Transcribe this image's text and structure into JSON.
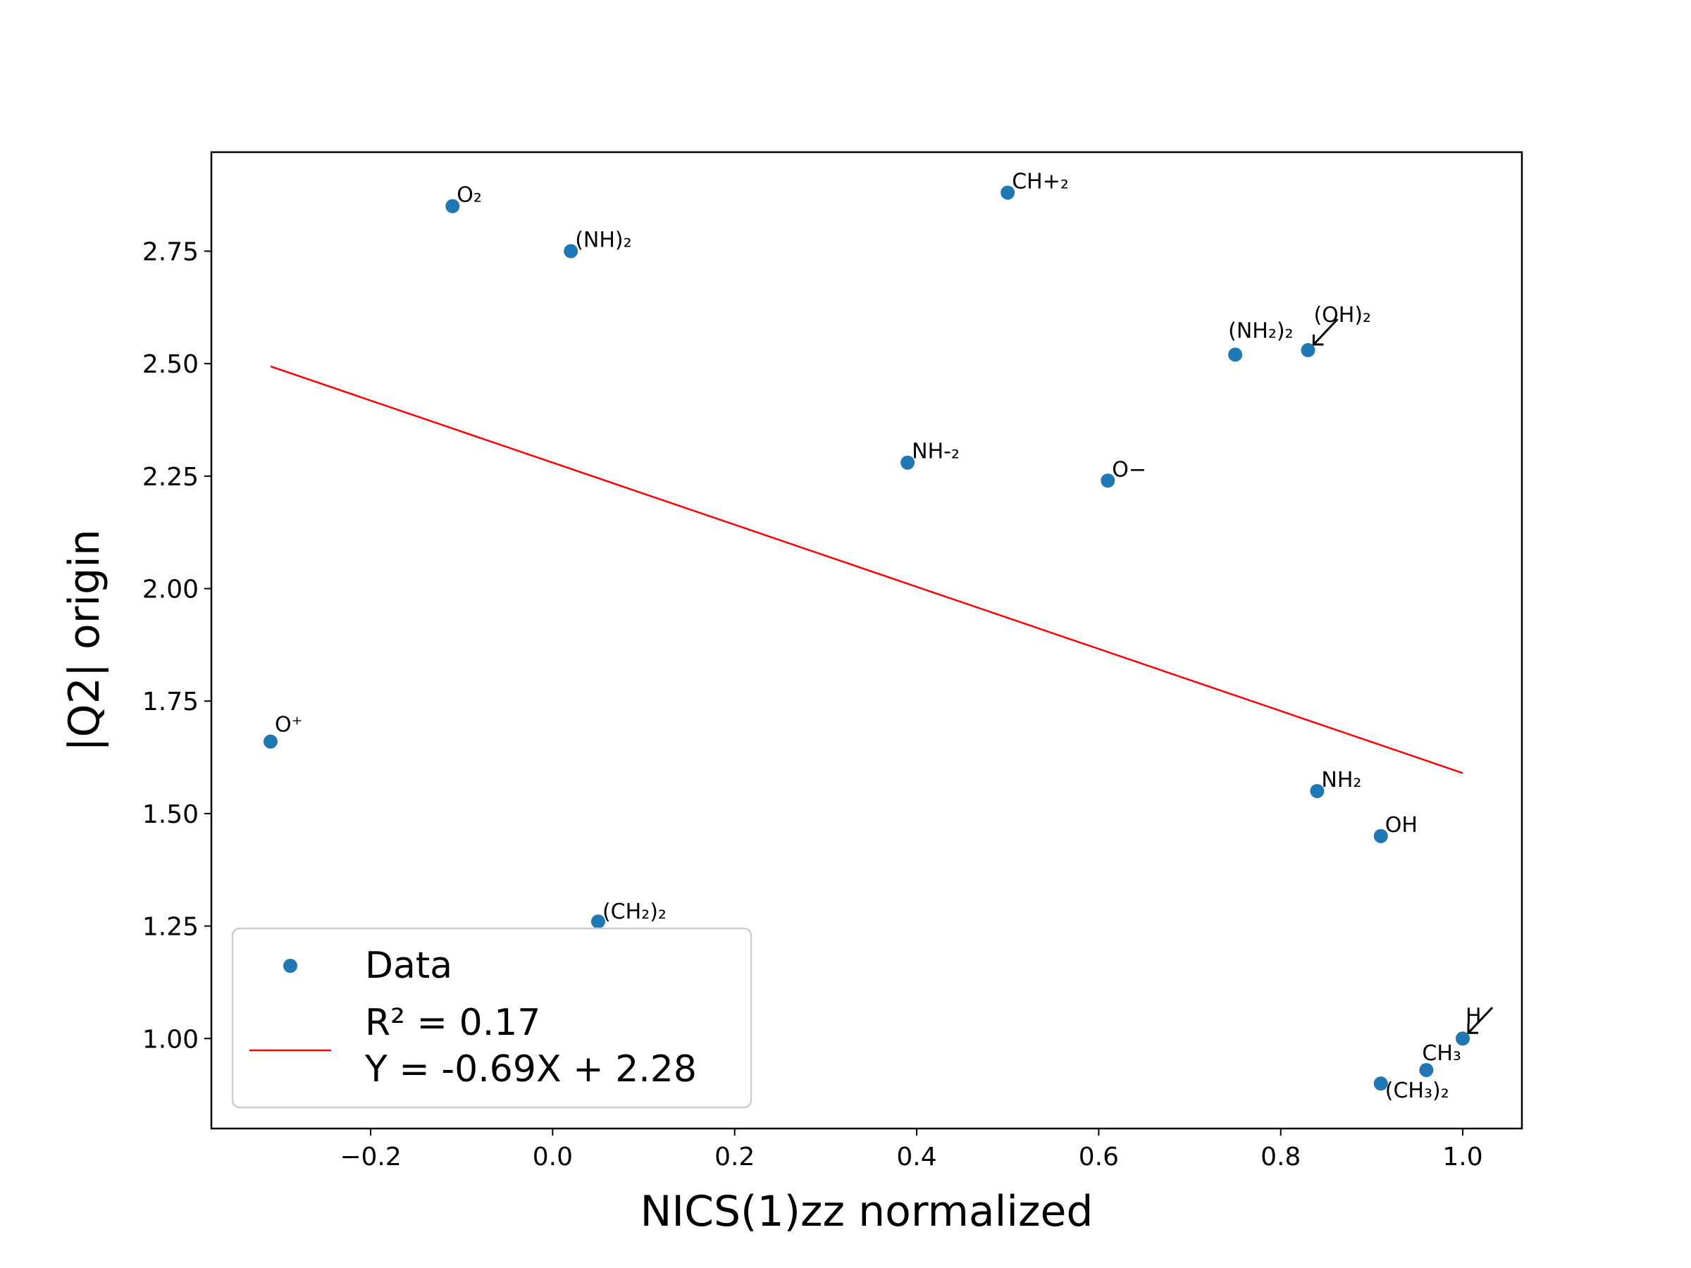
{
  "chart_data": {
    "type": "scatter",
    "xlabel": "NICS(1)zz normalized",
    "ylabel": "|Q2| origin",
    "xlim": [
      -0.375,
      1.065
    ],
    "ylim": [
      0.8,
      2.97
    ],
    "x_ticks": [
      -0.2,
      0.0,
      0.2,
      0.4,
      0.6,
      0.8,
      1.0
    ],
    "x_tick_labels": [
      "−0.2",
      "0.0",
      "0.2",
      "0.4",
      "0.6",
      "0.8",
      "1.0"
    ],
    "y_ticks": [
      1.0,
      1.25,
      1.5,
      1.75,
      2.0,
      2.25,
      2.5,
      2.75
    ],
    "y_tick_labels": [
      "1.00",
      "1.25",
      "1.50",
      "1.75",
      "2.00",
      "2.25",
      "2.50",
      "2.75"
    ],
    "grid": false,
    "legend_position": "lower-left",
    "series": [
      {
        "name": "Data",
        "color": "#1f77b4",
        "points": [
          {
            "x": -0.11,
            "y": 2.85,
            "label": "O₂"
          },
          {
            "x": 0.02,
            "y": 2.75,
            "label": "(NH)₂"
          },
          {
            "x": 0.5,
            "y": 2.88,
            "label": "CH+₂"
          },
          {
            "x": 0.75,
            "y": 2.52,
            "label": "(NH₂)₂"
          },
          {
            "x": 0.83,
            "y": 2.53,
            "label": "(OH)₂"
          },
          {
            "x": 0.39,
            "y": 2.28,
            "label": "NH-₂"
          },
          {
            "x": 0.61,
            "y": 2.24,
            "label": "O−"
          },
          {
            "x": -0.31,
            "y": 1.66,
            "label": "O⁺"
          },
          {
            "x": 0.84,
            "y": 1.55,
            "label": "NH₂"
          },
          {
            "x": 0.91,
            "y": 1.45,
            "label": "OH"
          },
          {
            "x": 0.05,
            "y": 1.26,
            "label": "(CH₂)₂"
          },
          {
            "x": 1.0,
            "y": 1.0,
            "label": "H"
          },
          {
            "x": 0.96,
            "y": 0.93,
            "label": "CH₃"
          },
          {
            "x": 0.91,
            "y": 0.9,
            "label": "(CH₃)₂"
          }
        ]
      }
    ],
    "fit_line": {
      "color": "#ff0000",
      "x_range": [
        -0.31,
        1.0
      ],
      "slope": -0.69,
      "intercept": 2.28,
      "legend_line1": "R² = 0.17",
      "legend_line2": "Y = -0.69X + 2.28"
    }
  }
}
